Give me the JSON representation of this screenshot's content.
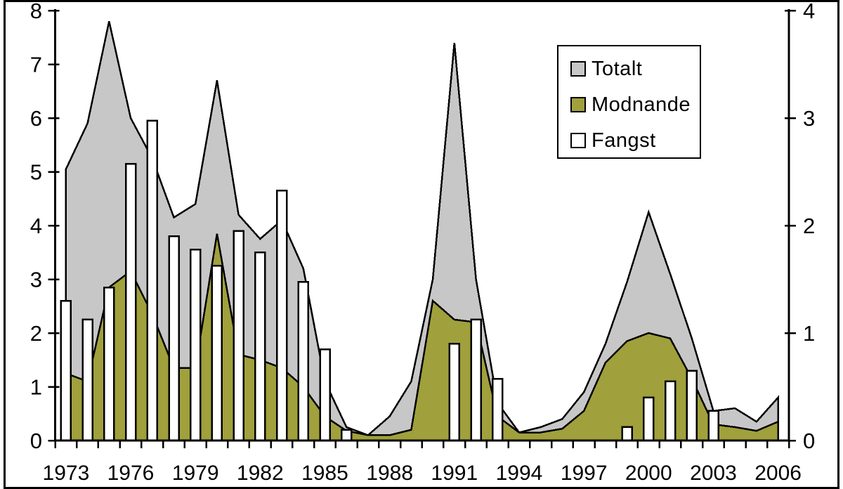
{
  "chart_data": {
    "type": "area",
    "title": "",
    "description": "Combination chart: two overlapping area series (Totalt, Modnande) on the left axis 0-8 and a white bar series (Fangst) plotted against the same plot box; right axis runs 0-4 (half of left axis).",
    "x": [
      1973,
      1974,
      1975,
      1976,
      1977,
      1978,
      1979,
      1980,
      1981,
      1982,
      1983,
      1984,
      1985,
      1986,
      1987,
      1988,
      1989,
      1990,
      1991,
      1992,
      1993,
      1994,
      1995,
      1996,
      1997,
      1998,
      1999,
      2000,
      2001,
      2002,
      2003,
      2004,
      2005,
      2006
    ],
    "series": [
      {
        "name": "Totalt",
        "type": "area",
        "color": "#c7c7c7",
        "values": [
          5.05,
          5.9,
          7.8,
          6.0,
          5.25,
          4.15,
          4.4,
          6.7,
          4.2,
          3.75,
          4.1,
          3.2,
          1.1,
          0.25,
          0.1,
          0.45,
          1.1,
          3.0,
          7.4,
          3.0,
          0.7,
          0.15,
          0.25,
          0.4,
          0.9,
          1.8,
          2.95,
          4.25,
          3.1,
          1.9,
          0.55,
          0.6,
          0.35,
          0.8
        ]
      },
      {
        "name": "Modnande",
        "type": "area",
        "color": "#a0a03c",
        "values": [
          1.25,
          1.1,
          2.85,
          3.15,
          2.35,
          1.35,
          1.35,
          3.85,
          1.6,
          1.5,
          1.35,
          1.0,
          0.45,
          0.18,
          0.1,
          0.1,
          0.2,
          2.6,
          2.25,
          2.2,
          0.45,
          0.15,
          0.15,
          0.22,
          0.55,
          1.45,
          1.85,
          2.0,
          1.9,
          1.15,
          0.3,
          0.25,
          0.18,
          0.35
        ]
      },
      {
        "name": "Fangst",
        "type": "bar",
        "color": "#ffffff",
        "values": [
          2.6,
          2.25,
          2.85,
          5.15,
          5.95,
          3.8,
          3.55,
          3.25,
          3.9,
          3.5,
          4.65,
          2.95,
          1.7,
          0.2,
          0,
          0,
          0,
          0,
          1.8,
          2.25,
          1.15,
          0,
          0,
          0,
          0,
          0,
          0.25,
          0.8,
          1.1,
          1.3,
          0.55,
          0,
          0,
          0
        ]
      }
    ],
    "left_axis": {
      "range": [
        0,
        8
      ],
      "ticks": [
        0,
        1,
        2,
        3,
        4,
        5,
        6,
        7,
        8
      ]
    },
    "right_axis": {
      "range": [
        0,
        4
      ],
      "ticks": [
        0,
        1,
        2,
        3,
        4
      ]
    },
    "x_axis": {
      "labels": [
        "1973",
        "1976",
        "1979",
        "1982",
        "1985",
        "1988",
        "1991",
        "1994",
        "1997",
        "2000",
        "2003",
        "2006"
      ]
    },
    "legend": {
      "position": "top-right"
    },
    "grid": "off",
    "outline_color": "#000000",
    "background": "#ffffff"
  }
}
